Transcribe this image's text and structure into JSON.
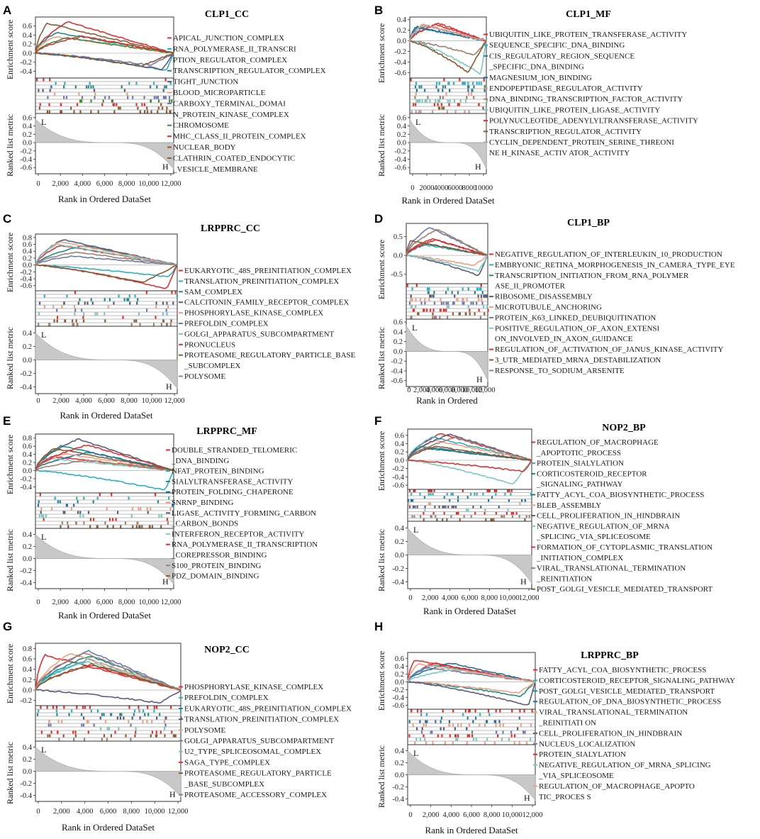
{
  "colors": [
    "#e03030",
    "#2ab0c0",
    "#1f8a8a",
    "#5a5a7a",
    "#f0a080",
    "#6a7ab0",
    "#2070a0",
    "#3a8a3a",
    "#d06a6a",
    "#a08070",
    "#7ac8c0",
    "#b04040",
    "#8a5a30",
    "#c0a0a0"
  ],
  "chart_data": [
    {
      "type": "line",
      "label": "A",
      "title": "CLP1_CC",
      "xlabel": "Rank in Ordered DataSet",
      "ylabel_top": "Enrichment score",
      "ylabel_bottom": "Ranked list metric",
      "es_ticks": [
        "0.6",
        "0.4",
        "0.2",
        "0.0",
        "-0.2",
        "-0.4"
      ],
      "es_ylim": [
        -0.55,
        0.8
      ],
      "metric_ticks": [
        "0.6",
        "0.4",
        "0.2",
        "0.0",
        "-0.2",
        "-0.4",
        "-0.6"
      ],
      "metric_ylim": [
        -0.75,
        0.7
      ],
      "x_ticks": [
        "0",
        "2,000",
        "4,000",
        "6,000",
        "8,000",
        "10,000",
        "12,000"
      ],
      "xmax": 12500,
      "corner_L": "L",
      "corner_H": "H",
      "legend": [
        {
          "text": "APICAL_JUNCTION_COMPLEX",
          "color": "#e03030"
        },
        {
          "text": "RNA_POLYMERASE_II_TRANSCRI",
          "color": "#2ab0c0"
        },
        {
          "text": "PTION_REGULATOR_COMPLEX",
          "color": ""
        },
        {
          "text": "TRANSCRIPTION_REGULATOR_COMPLEX",
          "color": "#1f8a8a"
        },
        {
          "text": "TIGHT_JUNCTION",
          "color": "#5a5a7a"
        },
        {
          "text": "BLOOD_MICROPARTICLE",
          "color": "#f0a080"
        },
        {
          "text": "CARBOXY_TERMINAL_DOMAI",
          "color": "#6a7ab0"
        },
        {
          "text": "N_PROTEIN_KINASE_COMPLEX",
          "color": ""
        },
        {
          "text": "CHROMOSOME",
          "color": "#3a8a3a"
        },
        {
          "text": "MHC_CLASS_II_PROTEIN_COMPLEX",
          "color": "#e03030"
        },
        {
          "text": "NUCLEAR_BODY",
          "color": "#8a5a30"
        },
        {
          "text": "CLATHRIN_COATED_ENDOCYTIC",
          "color": "#8a5a30"
        },
        {
          "text": "_VESICLE_MEMBRANE",
          "color": ""
        }
      ]
    },
    {
      "type": "line",
      "label": "B",
      "title": "CLP1_MF",
      "xlabel": "Rank in Ordered DataSet",
      "ylabel_top": "Enrichment score",
      "ylabel_bottom": "Ranked list metric",
      "es_ticks": [
        "0.4",
        "0.2",
        "0.0",
        "-0.2",
        "-0.4",
        "-0.6"
      ],
      "es_ylim": [
        -0.7,
        0.45
      ],
      "metric_ticks": [
        "0.6",
        "0.4",
        "0.2",
        "0.0",
        "-0.2",
        "-0.4",
        "-0.6"
      ],
      "metric_ylim": [
        -0.75,
        0.7
      ],
      "x_ticks": [
        "0",
        "2000",
        "4000",
        "6000",
        "8000",
        "10000"
      ],
      "xmax": 10000,
      "corner_L": "L",
      "corner_H": "H",
      "legend": [
        {
          "text": "UBIQUITIN_LIKE_PROTEIN_TRANSFERASE_ACTIVITY",
          "color": "#e03030"
        },
        {
          "text": "SEQUENCE_SPECIFIC_DNA_BINDING",
          "color": "#2ab0c0"
        },
        {
          "text": "CIS_REGULATORY_REGION_SEQUENCE",
          "color": "#1f8a8a"
        },
        {
          "text": "_SPECIFIC_DNA_BINDING",
          "color": ""
        },
        {
          "text": "MAGNESIUM_ION_BINDING",
          "color": "#2070a0"
        },
        {
          "text": "ENDOPEPTIDASE_REGULATOR_ACTIVITY",
          "color": "#f0a080"
        },
        {
          "text": "DNA_BINDING_TRANSCRIPTION_FACTOR_ACTIVITY",
          "color": "#a08070"
        },
        {
          "text": "UBIQUITIN_LIKE_PROTEIN_LIGASE_ACTIVITY",
          "color": "#7ac8c0"
        },
        {
          "text": "POLYNUCLEOTIDE_ADENYLYLTRANSFERASE_ACTIVITY",
          "color": "#e03030"
        },
        {
          "text": "TRANSCRIPTION_REGULATOR_ACTIVITY",
          "color": "#8a5a30"
        },
        {
          "text": "CYCLIN_DEPENDENT_PROTEIN_SERINE_THREONI",
          "color": "#c0a0a0"
        },
        {
          "text": "NE H_KINASE_ACTIV ATOR_ACTIVITY",
          "color": ""
        }
      ]
    },
    {
      "type": "line",
      "label": "C",
      "title": "LRPPRC_CC",
      "xlabel": "Rank in Ordered DataSet",
      "ylabel_top": "Enrichment score",
      "ylabel_bottom": "Ranked list metric",
      "es_ticks": [
        "0.8",
        "0.6",
        "0.4",
        "0.2",
        "0.0",
        "-0.2",
        "-0.4",
        "-0.6"
      ],
      "es_ylim": [
        -0.75,
        0.9
      ],
      "metric_ticks": [
        "0.4",
        "0.2",
        "0.0",
        "-0.2",
        "-0.4"
      ],
      "metric_ylim": [
        -0.5,
        0.5
      ],
      "x_ticks": [
        "0",
        "2,000",
        "4,000",
        "6,000",
        "8,000",
        "10,000",
        "12,000"
      ],
      "xmax": 12800,
      "corner_L": "L",
      "corner_H": "H",
      "legend": [
        {
          "text": "EUKARYOTIC_48S_PREINITIATION_COMPLEX",
          "color": "#e03030"
        },
        {
          "text": "TRANSLATION_PREINITIATION_COMPLEX",
          "color": "#2ab0c0"
        },
        {
          "text": "SAM_COMPLEX",
          "color": "#1f8a8a"
        },
        {
          "text": "CALCITONIN_FAMILY_RECEPTOR_COMPLEX",
          "color": "#5a5a7a"
        },
        {
          "text": "PHOSPHORYLASE_KINASE_COMPLEX",
          "color": "#f0a080"
        },
        {
          "text": "PREFOLDIN_COMPLEX",
          "color": "#6a7ab0"
        },
        {
          "text": "GOLGI_APPARATUS_SUBCOMPARTMENT",
          "color": "#7ac8c0"
        },
        {
          "text": "PRONUCLEUS",
          "color": "#e03030"
        },
        {
          "text": "PROTEASOME_REGULATORY_PARTICLE_BASE",
          "color": "#8a5a30"
        },
        {
          "text": "_SUBCOMPLEX",
          "color": ""
        },
        {
          "text": "POLYSOME",
          "color": "#a08070"
        }
      ]
    },
    {
      "type": "line",
      "label": "D",
      "title": "CLP1_BP",
      "xlabel": "Rank in Ordered",
      "ylabel_top": "Enrichment score",
      "ylabel_bottom": "Ranked list metric",
      "es_ticks": [
        "0.5",
        "0.0",
        "-0.5"
      ],
      "es_ylim": [
        -0.75,
        0.85
      ],
      "metric_ticks": [
        "0.6",
        "0.4",
        "0.2",
        "0.0",
        "-0.2",
        "-0.4",
        "-0.6"
      ],
      "metric_ylim": [
        -0.72,
        0.66
      ],
      "x_ticks": [
        "0",
        "2,000",
        "4,000",
        "6,000",
        "8,000",
        "10,000",
        "12,000"
      ],
      "xmax": 12500,
      "corner_L": "L",
      "corner_H": "H",
      "legend": [
        {
          "text": "NEGATIVE_REGULATION_OF_INTERLEUKIN_10_PRODUCTION",
          "color": "#e03030"
        },
        {
          "text": "EMBRYONIC_RETINA_MORPHOGENESIS_IN_CAMERA_TYPE_EYE",
          "color": "#2ab0c0"
        },
        {
          "text": "TRANSCRIPTION_INITIATION_FROM_RNA_POLYMER",
          "color": "#1f8a8a"
        },
        {
          "text": "ASE_II_PROMOTER",
          "color": ""
        },
        {
          "text": "RIBOSOME_DISASSEMBLY",
          "color": "#5a5a7a"
        },
        {
          "text": "MICROTUBULE_ANCHORING",
          "color": "#f0a080"
        },
        {
          "text": "PROTEIN_K63_LINKED_DEUBIQUITINATION",
          "color": "#6a7ab0"
        },
        {
          "text": "POSITIVE_REGULATION_OF_AXON_EXTENSI",
          "color": "#7ac8c0"
        },
        {
          "text": "ON_INVOLVED_IN_AXON_GUIDANCE",
          "color": ""
        },
        {
          "text": "REGULATION_OF_ACTIVATION_OF_JANUS_KINASE_ACTIVITY",
          "color": "#e03030"
        },
        {
          "text": "3_UTR_MEDIATED_MRNA_DESTABILIZATION",
          "color": "#8a5a30"
        },
        {
          "text": "RESPONSE_TO_SODIUM_ARSENITE",
          "color": "#a08070"
        }
      ]
    },
    {
      "type": "line",
      "label": "E",
      "title": "LRPPRC_MF",
      "xlabel": "Rank in Ordered DataSet",
      "ylabel_top": "Enrichment score",
      "ylabel_bottom": "Ranked list metric",
      "es_ticks": [
        "0.8",
        "0.6",
        "0.4",
        "0.2",
        "0.0",
        "-0.2",
        "-0.4"
      ],
      "es_ylim": [
        -0.55,
        0.9
      ],
      "metric_ticks": [
        "0.4",
        "0.2",
        "0.0",
        "-0.2",
        "-0.4"
      ],
      "metric_ylim": [
        -0.5,
        0.5
      ],
      "x_ticks": [
        "0",
        "2,000",
        "4,000",
        "6,000",
        "8,000",
        "10,000",
        "12,000"
      ],
      "xmax": 12500,
      "corner_L": "L",
      "corner_H": "H",
      "legend": [
        {
          "text": "DOUBLE_STRANDED_TELOMERIC",
          "color": "#e03030"
        },
        {
          "text": "_DNA_BINDING",
          "color": ""
        },
        {
          "text": "NFAT_PROTEIN_BINDING",
          "color": "#2ab0c0"
        },
        {
          "text": "SIALYLTRANSFERASE_ACTIVITY",
          "color": "#1f8a8a"
        },
        {
          "text": "PROTEIN_FOLDING_CHAPERONE",
          "color": "#2070a0"
        },
        {
          "text": "SNRNP_BINDING",
          "color": "#f0a080"
        },
        {
          "text": "LIGASE_ACTIVITY_FORMING_CARBON",
          "color": "#5a5a7a"
        },
        {
          "text": "_CARBON_BONDS",
          "color": ""
        },
        {
          "text": "INTERFERON_RECEPTOR_ACTIVITY",
          "color": "#7ac8c0"
        },
        {
          "text": "RNA_POLYMERASE_II_TRANSCRIPTION",
          "color": "#e03030"
        },
        {
          "text": "_COREPRESSOR_BINDING",
          "color": ""
        },
        {
          "text": "S100_PROTEIN_BINDING",
          "color": "#a08070"
        },
        {
          "text": "PDZ_DOMAIN_BINDING",
          "color": "#8a5a30"
        }
      ]
    },
    {
      "type": "line",
      "label": "F",
      "title": "NOP2_BP",
      "xlabel": "Rank in Ordered DataSet",
      "ylabel_top": "Enrichment score",
      "ylabel_bottom": "Ranked list metric",
      "es_ticks": [
        "0.6",
        "0.4",
        "0.2",
        "0.0",
        "-0.2",
        "-0.4",
        "-0.6"
      ],
      "es_ylim": [
        -0.7,
        0.75
      ],
      "metric_ticks": [
        "0.4",
        "0.2",
        "0.0",
        "-0.2",
        "-0.4"
      ],
      "metric_ylim": [
        -0.5,
        0.5
      ],
      "x_ticks": [
        "0",
        "2,000",
        "4,000",
        "6,000",
        "8,000",
        "10,000",
        "12,000"
      ],
      "xmax": 12500,
      "corner_L": "L",
      "corner_H": "H",
      "legend": [
        {
          "text": "REGULATION_OF_MACROPHAGE",
          "color": "#e03030"
        },
        {
          "text": "_APOPTOTIC_PROCESS",
          "color": ""
        },
        {
          "text": "PROTEIN_SIALYLATION",
          "color": "#2ab0c0"
        },
        {
          "text": "CORTICOSTEROID_RECEPTOR",
          "color": "#1f8a8a"
        },
        {
          "text": "_SIGNALING_PATHWAY",
          "color": ""
        },
        {
          "text": "FATTY_ACYL_COA_BIOSYNTHETIC_PROCESS",
          "color": "#2070a0"
        },
        {
          "text": "BLEB_ASSEMBLY",
          "color": "#f0a080"
        },
        {
          "text": "CELL_PROLIFERATION_IN_HINDBRAIN",
          "color": "#5a5a7a"
        },
        {
          "text": "NEGATIVE_REGULATION_OF_MRNA",
          "color": "#7ac8c0"
        },
        {
          "text": "_SPLICING_VIA_SPLICEOSOME",
          "color": ""
        },
        {
          "text": "FORMATION_OF_CYTOPLASMIC_TRANSLATION",
          "color": "#e03030"
        },
        {
          "text": "_INITIATION_COMPLEX",
          "color": ""
        },
        {
          "text": "VIRAL_TRANSLATIONAL_TERMINATION",
          "color": "#a08070"
        },
        {
          "text": "_REINITIATION",
          "color": ""
        },
        {
          "text": "POST_GOLGI_VESICLE_MEDIATED_TRANSPORT",
          "color": "#8a5a30"
        }
      ]
    },
    {
      "type": "line",
      "label": "G",
      "title": "NOP2_CC",
      "xlabel": "Rank in Ordered DataSet",
      "ylabel_top": "Enrichment score",
      "ylabel_bottom": "Ranked list metric",
      "es_ticks": [
        "0.8",
        "0.6",
        "0.4",
        "0.2",
        "0.0",
        "-0.2"
      ],
      "es_ylim": [
        -0.3,
        0.9
      ],
      "metric_ticks": [
        "0.4",
        "0.2",
        "0.0",
        "-0.2",
        "-0.4"
      ],
      "metric_ylim": [
        -0.5,
        0.5
      ],
      "x_ticks": [
        "0",
        "2,000",
        "4,000",
        "6,000",
        "8,000",
        "10,000",
        "12,000"
      ],
      "xmax": 12500,
      "corner_L": "L",
      "corner_H": "H",
      "legend": [
        {
          "text": "PHOSPHORYLASE_KINASE_COMPLEX",
          "color": "#e03030"
        },
        {
          "text": "PREFOLDIN_COMPLEX",
          "color": "#2ab0c0"
        },
        {
          "text": "EUKARYOTIC_48S_PREINITIATION_COMPLEX",
          "color": "#1f8a8a"
        },
        {
          "text": "TRANSLATION_PREINITIATION_COMPLEX",
          "color": "#5a5a7a"
        },
        {
          "text": "POLYSOME",
          "color": "#f0a080"
        },
        {
          "text": "GOLGI_APPARATUS_SUBCOMPARTMENT",
          "color": "#6a7ab0"
        },
        {
          "text": "U2_TYPE_SPLICEOSOMAL_COMPLEX",
          "color": "#7ac8c0"
        },
        {
          "text": "SAGA_TYPE_COMPLEX",
          "color": "#e03030"
        },
        {
          "text": "PROTEASOME_REGULATORY_PARTICLE",
          "color": "#8a5a30"
        },
        {
          "text": "_BASE_SUBCOMPLEX",
          "color": ""
        },
        {
          "text": "PROTEASOME_ACCESSORY_COMPLEX",
          "color": "#a08070"
        }
      ]
    },
    {
      "type": "line",
      "label": "H",
      "title": "LRPPRC_BP",
      "xlabel": "Rank in Ordered DataSet",
      "ylabel_top": "Enrichment score",
      "ylabel_bottom": "Ranked list metric",
      "es_ticks": [
        "0.6",
        "0.4",
        "0.2",
        "0.0",
        "-0.2",
        "-0.4",
        "-0.6"
      ],
      "es_ylim": [
        -0.7,
        0.75
      ],
      "metric_ticks": [
        "0.4",
        "0.2",
        "0.0",
        "-0.2",
        "-0.4"
      ],
      "metric_ylim": [
        -0.5,
        0.5
      ],
      "x_ticks": [
        "0",
        "2,000",
        "4,000",
        "6,000",
        "8,000",
        "10,000",
        "12,000"
      ],
      "xmax": 12500,
      "corner_L": "L",
      "corner_H": "H",
      "legend": [
        {
          "text": "FATTY_ACYL_COA_BIOSYNTHETIC_PROCESS",
          "color": "#e03030"
        },
        {
          "text": "CORTICOSTEROID_RECEPTOR_SIGNALING_PATHWAY",
          "color": "#2ab0c0"
        },
        {
          "text": "POST_GOLGI_VESICLE_MEDIATED_TRANSPORT",
          "color": "#1f8a8a"
        },
        {
          "text": "REGULATION_OF_DNA_BIOSYNTHETIC_PROCESS",
          "color": "#2070a0"
        },
        {
          "text": "VIRAL_TRANSLATIONAL_TERMINATION",
          "color": "#f0a080"
        },
        {
          "text": "_REINITIATI ON",
          "color": ""
        },
        {
          "text": "CELL_PROLIFERATION_IN_HINDBRAIN",
          "color": "#5a5a7a"
        },
        {
          "text": "NUCLEUS_LOCALIZATION",
          "color": "#6a7ab0"
        },
        {
          "text": "PROTEIN_SIALYLATION",
          "color": "#e03030"
        },
        {
          "text": "NEGATIVE_REGULATION_OF_MRNA_SPLICING",
          "color": "#7ac8c0"
        },
        {
          "text": "_VIA_SPLICEOSOME",
          "color": ""
        },
        {
          "text": "REGULATION_OF_MACROPHAGE_APOPTO",
          "color": "#f0a080"
        },
        {
          "text": "TIC_PROCES S",
          "color": ""
        }
      ]
    }
  ]
}
